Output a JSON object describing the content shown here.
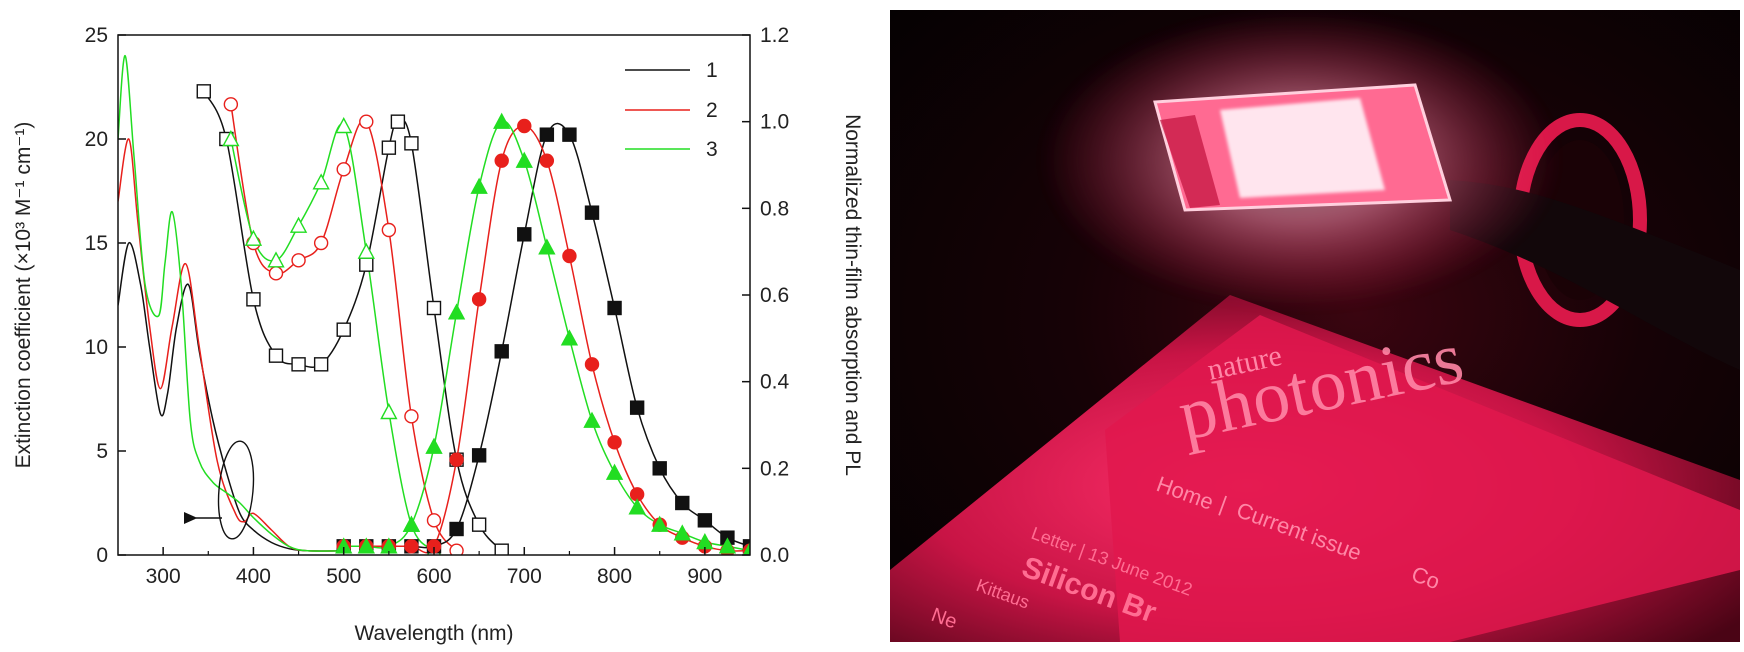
{
  "chart_data": {
    "type": "line",
    "title": "",
    "xlabel": "Wavelength (nm)",
    "ylabel_left": "Extinction coefficient (×10³ M⁻¹ cm⁻¹)",
    "ylabel_right": "Normalized thin-film absorption and PL",
    "xlim": [
      250,
      950
    ],
    "ylim_left": [
      0,
      25
    ],
    "ylim_right": [
      0,
      1.2
    ],
    "x_ticks": [
      300,
      400,
      500,
      600,
      700,
      800,
      900
    ],
    "y_left_ticks": [
      0,
      5,
      10,
      15,
      20,
      25
    ],
    "y_right_ticks": [
      "0.0",
      "0.2",
      "0.4",
      "0.6",
      "0.8",
      "1.0",
      "1.2"
    ],
    "legend": {
      "position": "top-right",
      "entries": [
        "1",
        "2",
        "3"
      ]
    },
    "grid": false,
    "annotation": "arrow pointing left: circled curves refer to left axis",
    "colors": {
      "1": "#111111",
      "2": "#e8201c",
      "3": "#22dd22"
    },
    "series": [
      {
        "name": "1",
        "role": "solution extinction (left axis)",
        "x": [
          250,
          262,
          275,
          285,
          297,
          305,
          315,
          328,
          340,
          355,
          370,
          385,
          400,
          420,
          440,
          460,
          500
        ],
        "y": [
          12,
          15,
          13,
          10,
          6.8,
          7.8,
          11,
          13,
          9.8,
          6.5,
          4,
          2.0,
          1.2,
          0.6,
          0.3,
          0.2,
          0.2
        ]
      },
      {
        "name": "2",
        "role": "solution extinction (left axis)",
        "x": [
          250,
          262,
          272,
          285,
          297,
          310,
          325,
          340,
          360,
          380,
          390,
          400,
          420,
          440,
          460,
          500
        ],
        "y": [
          17,
          20,
          16,
          11,
          8,
          11,
          14,
          10,
          4.5,
          2.0,
          1.6,
          2.0,
          1.2,
          0.4,
          0.2,
          0.2
        ]
      },
      {
        "name": "3",
        "role": "solution extinction (left axis)",
        "x": [
          250,
          258,
          268,
          280,
          295,
          302,
          310,
          320,
          330,
          340,
          355,
          370,
          385,
          400,
          420,
          440,
          460,
          500
        ],
        "y": [
          20,
          24,
          19,
          13,
          11.5,
          14,
          16.5,
          13,
          6.5,
          4.5,
          3.5,
          3.0,
          2.5,
          1.8,
          1.0,
          0.4,
          0.2,
          0.2
        ]
      },
      {
        "name": "1",
        "role": "thin-film absorption (right axis)",
        "marker": "open-square",
        "x": [
          345,
          370,
          400,
          425,
          450,
          475,
          500,
          525,
          550,
          560,
          575,
          600,
          625,
          650,
          675
        ],
        "y": [
          1.07,
          0.96,
          0.59,
          0.46,
          0.44,
          0.44,
          0.52,
          0.67,
          0.94,
          1.0,
          0.95,
          0.57,
          0.22,
          0.07,
          0.01
        ]
      },
      {
        "name": "2",
        "role": "thin-film absorption (right axis)",
        "marker": "open-circle",
        "x": [
          375,
          400,
          425,
          450,
          475,
          500,
          525,
          550,
          575,
          600,
          625
        ],
        "y": [
          1.04,
          0.72,
          0.65,
          0.68,
          0.72,
          0.89,
          1.0,
          0.75,
          0.32,
          0.08,
          0.01
        ]
      },
      {
        "name": "3",
        "role": "thin-film absorption (right axis)",
        "marker": "open-triangle",
        "x": [
          375,
          400,
          425,
          450,
          475,
          500,
          525,
          550,
          575,
          600
        ],
        "y": [
          0.96,
          0.73,
          0.68,
          0.76,
          0.86,
          0.99,
          0.7,
          0.33,
          0.07,
          0.01
        ]
      },
      {
        "name": "1",
        "role": "PL (right axis)",
        "marker": "filled-square",
        "x": [
          500,
          525,
          550,
          575,
          600,
          625,
          650,
          675,
          700,
          725,
          750,
          775,
          800,
          825,
          850,
          875,
          900,
          925,
          950
        ],
        "y": [
          0.02,
          0.02,
          0.02,
          0.02,
          0.02,
          0.06,
          0.23,
          0.47,
          0.74,
          0.97,
          0.97,
          0.79,
          0.57,
          0.34,
          0.2,
          0.12,
          0.08,
          0.04,
          0.02
        ]
      },
      {
        "name": "2",
        "role": "PL (right axis)",
        "marker": "filled-circle",
        "x": [
          500,
          525,
          550,
          575,
          600,
          625,
          650,
          675,
          700,
          725,
          750,
          775,
          800,
          825,
          850,
          875,
          900,
          925,
          950
        ],
        "y": [
          0.02,
          0.02,
          0.02,
          0.02,
          0.02,
          0.22,
          0.59,
          0.91,
          0.99,
          0.91,
          0.69,
          0.44,
          0.26,
          0.14,
          0.07,
          0.04,
          0.02,
          0.01,
          0.01
        ]
      },
      {
        "name": "3",
        "role": "PL (right axis)",
        "marker": "filled-triangle",
        "x": [
          500,
          525,
          550,
          575,
          600,
          625,
          650,
          675,
          700,
          725,
          750,
          775,
          800,
          825,
          850,
          875,
          900,
          925,
          950
        ],
        "y": [
          0.02,
          0.02,
          0.02,
          0.07,
          0.25,
          0.56,
          0.85,
          1.0,
          0.91,
          0.71,
          0.5,
          0.31,
          0.19,
          0.11,
          0.07,
          0.05,
          0.03,
          0.02,
          0.01
        ]
      }
    ]
  },
  "photo": {
    "magazine_brand_top": "nature",
    "magazine_brand_main": "photonics",
    "nav_home": "Home",
    "nav_separator": "|",
    "nav_current": "Current issue",
    "nav_more": "Co",
    "article_meta": "Letter | 13 June 2012",
    "article_title": "Silicon Br",
    "authors_line1": "Kittaus",
    "authors_line2": "Ne",
    "colors": {
      "glow": "#ff1f5a",
      "background": "#050102"
    }
  }
}
